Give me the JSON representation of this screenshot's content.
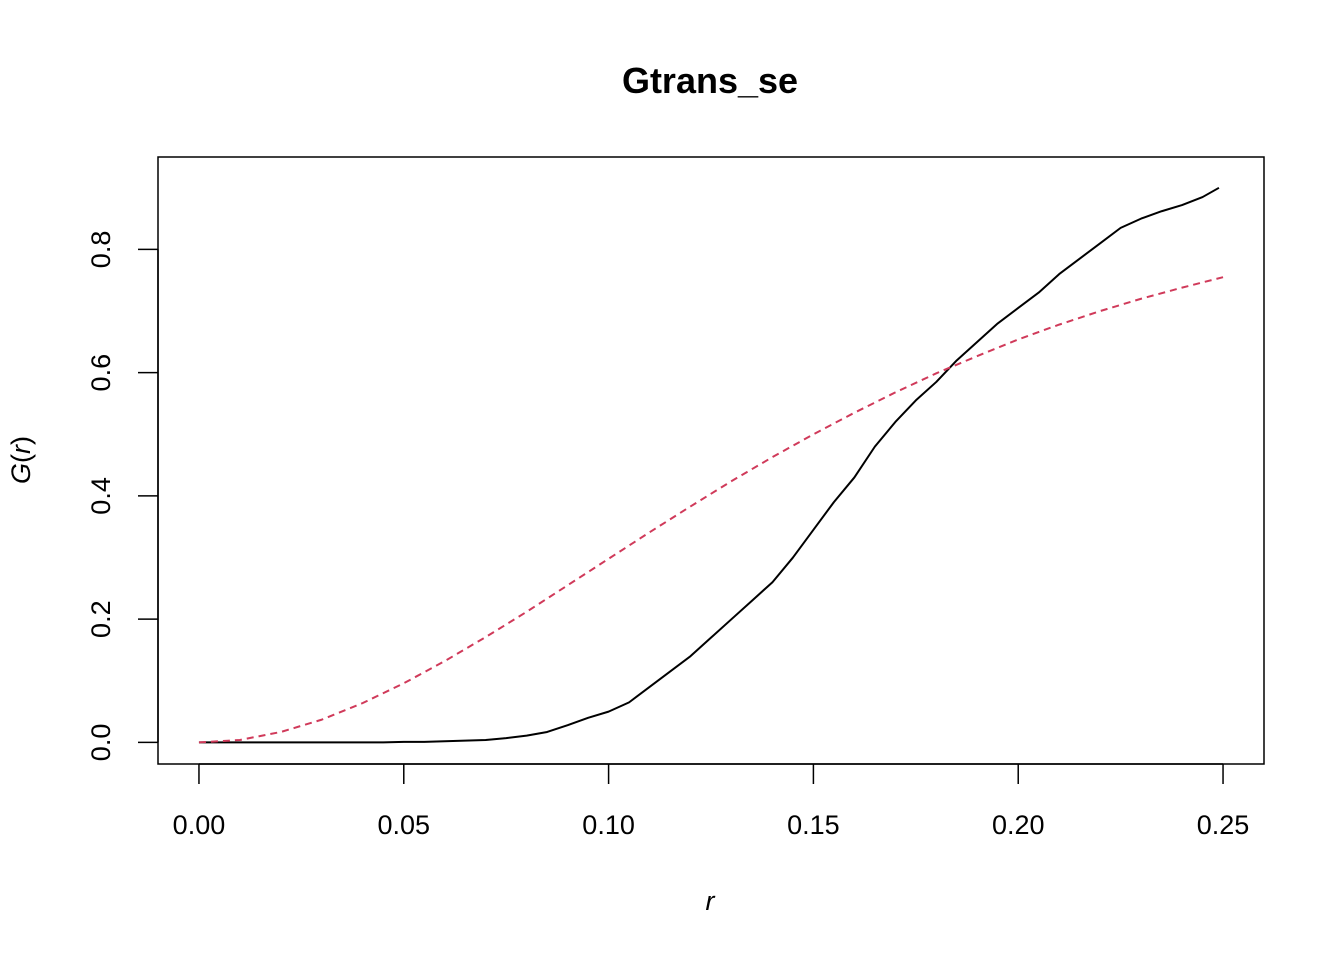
{
  "chart_data": {
    "type": "line",
    "title": "Gtrans_se",
    "xlabel": "r",
    "ylabel": {
      "fn": "G",
      "open": "(",
      "var": "r",
      "close": ")"
    },
    "xlim": [
      -0.01,
      0.26
    ],
    "ylim": [
      -0.035,
      0.95
    ],
    "xticks": [
      0.0,
      0.05,
      0.1,
      0.15,
      0.2,
      0.25
    ],
    "xtick_labels": [
      "0.00",
      "0.05",
      "0.10",
      "0.15",
      "0.20",
      "0.25"
    ],
    "yticks": [
      0.0,
      0.2,
      0.4,
      0.6,
      0.8
    ],
    "ytick_labels": [
      "0.0",
      "0.2",
      "0.4",
      "0.6",
      "0.8"
    ],
    "grid": false,
    "series": [
      {
        "style": "solid",
        "color": "#000000",
        "x": [
          0.0,
          0.01,
          0.02,
          0.03,
          0.04,
          0.045,
          0.05,
          0.055,
          0.06,
          0.065,
          0.07,
          0.075,
          0.08,
          0.085,
          0.09,
          0.095,
          0.1,
          0.105,
          0.11,
          0.115,
          0.12,
          0.125,
          0.13,
          0.135,
          0.14,
          0.145,
          0.15,
          0.155,
          0.16,
          0.165,
          0.17,
          0.175,
          0.18,
          0.185,
          0.19,
          0.195,
          0.2,
          0.205,
          0.21,
          0.215,
          0.22,
          0.225,
          0.23,
          0.235,
          0.24,
          0.245,
          0.249
        ],
        "y": [
          0.0,
          0.0,
          0.0,
          0.0,
          0.0,
          0.0,
          0.001,
          0.001,
          0.002,
          0.003,
          0.004,
          0.007,
          0.011,
          0.017,
          0.028,
          0.04,
          0.05,
          0.065,
          0.09,
          0.115,
          0.14,
          0.17,
          0.2,
          0.23,
          0.26,
          0.3,
          0.345,
          0.39,
          0.43,
          0.48,
          0.52,
          0.555,
          0.585,
          0.62,
          0.65,
          0.68,
          0.705,
          0.73,
          0.76,
          0.785,
          0.81,
          0.835,
          0.85,
          0.862,
          0.872,
          0.885,
          0.9
        ]
      },
      {
        "style": "dashed",
        "color": "#d03a5a",
        "x": [
          0.0,
          0.01,
          0.02,
          0.03,
          0.04,
          0.05,
          0.06,
          0.07,
          0.08,
          0.09,
          0.1,
          0.11,
          0.12,
          0.13,
          0.14,
          0.15,
          0.16,
          0.17,
          0.18,
          0.19,
          0.2,
          0.21,
          0.22,
          0.23,
          0.24,
          0.25
        ],
        "y": [
          0.0,
          0.004,
          0.017,
          0.037,
          0.064,
          0.096,
          0.132,
          0.171,
          0.212,
          0.255,
          0.298,
          0.341,
          0.383,
          0.424,
          0.463,
          0.5,
          0.535,
          0.568,
          0.599,
          0.627,
          0.654,
          0.678,
          0.7,
          0.72,
          0.738,
          0.755
        ]
      }
    ]
  }
}
